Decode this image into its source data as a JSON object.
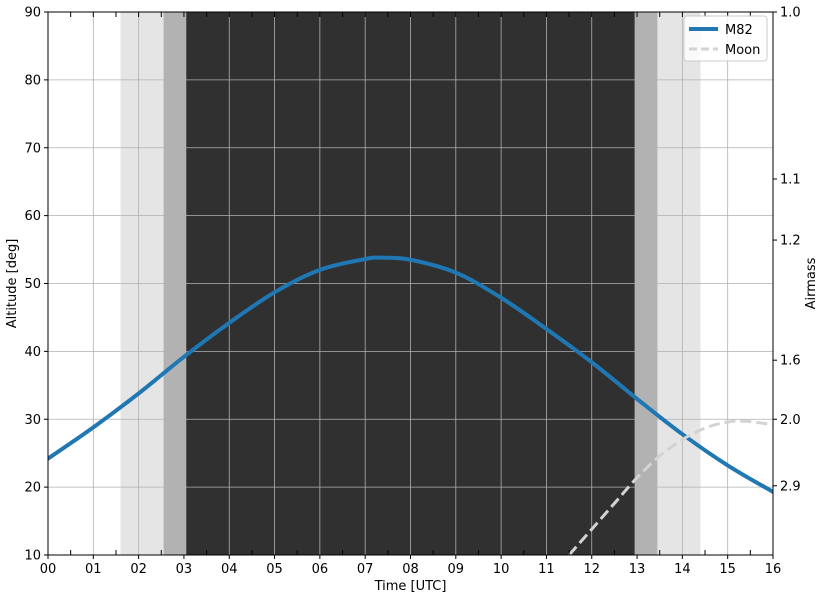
{
  "colors": {
    "m82": "#1f77b4",
    "moon": "#d3d3d3",
    "night": "#303030",
    "nautical": "#b2b2b2",
    "civil": "#e5e5e5",
    "grid": "#b0b0b0"
  },
  "chart_data": {
    "type": "line",
    "xlabel": "Time [UTC]",
    "ylabel": "Altitude [deg]",
    "ylabel_right": "Airmass",
    "xlim": [
      0,
      16
    ],
    "ylim": [
      10,
      90
    ],
    "grid": true,
    "legend_position": "top-right",
    "x_ticks": [
      {
        "value": 0,
        "label": "00"
      },
      {
        "value": 1,
        "label": "01"
      },
      {
        "value": 2,
        "label": "02"
      },
      {
        "value": 3,
        "label": "03"
      },
      {
        "value": 4,
        "label": "04"
      },
      {
        "value": 5,
        "label": "05"
      },
      {
        "value": 6,
        "label": "06"
      },
      {
        "value": 7,
        "label": "07"
      },
      {
        "value": 8,
        "label": "08"
      },
      {
        "value": 9,
        "label": "09"
      },
      {
        "value": 10,
        "label": "10"
      },
      {
        "value": 11,
        "label": "11"
      },
      {
        "value": 12,
        "label": "12"
      },
      {
        "value": 13,
        "label": "13"
      },
      {
        "value": 14,
        "label": "14"
      },
      {
        "value": 15,
        "label": "15"
      },
      {
        "value": 16,
        "label": "16"
      }
    ],
    "y_ticks": [
      {
        "value": 10,
        "label": "10"
      },
      {
        "value": 20,
        "label": "20"
      },
      {
        "value": 30,
        "label": "30"
      },
      {
        "value": 40,
        "label": "40"
      },
      {
        "value": 50,
        "label": "50"
      },
      {
        "value": 60,
        "label": "60"
      },
      {
        "value": 70,
        "label": "70"
      },
      {
        "value": 80,
        "label": "80"
      },
      {
        "value": 90,
        "label": "90"
      }
    ],
    "airmass_ticks": [
      {
        "altitude": 90.0,
        "label": "1.0"
      },
      {
        "altitude": 65.4,
        "label": "1.1"
      },
      {
        "altitude": 56.4,
        "label": "1.2"
      },
      {
        "altitude": 38.7,
        "label": "1.6"
      },
      {
        "altitude": 30.0,
        "label": "2.0"
      },
      {
        "altitude": 20.2,
        "label": "2.9"
      }
    ],
    "minor_x_ticks": [
      0.5,
      1.5,
      2.5,
      3.5,
      4.5,
      5.5,
      6.5,
      7.5,
      8.5,
      9.5,
      10.5,
      11.5,
      12.5,
      13.5,
      14.5,
      15.5
    ],
    "twilight_bands": [
      {
        "start": 1.6,
        "end": 2.55,
        "kind": "civil"
      },
      {
        "start": 2.55,
        "end": 3.05,
        "kind": "nautical"
      },
      {
        "start": 3.05,
        "end": 12.95,
        "kind": "night"
      },
      {
        "start": 12.95,
        "end": 13.45,
        "kind": "nautical"
      },
      {
        "start": 13.45,
        "end": 14.4,
        "kind": "civil"
      }
    ],
    "series": [
      {
        "name": "M82",
        "style": "solid",
        "x": [
          0,
          1,
          2,
          3,
          4,
          5,
          6,
          7,
          7.4,
          8,
          9,
          10,
          11,
          12,
          13,
          14,
          15,
          16
        ],
        "y": [
          24.2,
          28.8,
          33.8,
          39.2,
          44.2,
          48.7,
          52.0,
          53.6,
          53.8,
          53.5,
          51.6,
          47.9,
          43.3,
          38.4,
          33.0,
          27.8,
          23.2,
          19.3
        ]
      },
      {
        "name": "Moon",
        "style": "dashed",
        "x": [
          11.5,
          12,
          12.5,
          13,
          13.5,
          14,
          14.5,
          15,
          15.4,
          16
        ],
        "y": [
          10.0,
          13.8,
          17.6,
          21.4,
          24.6,
          27.0,
          28.7,
          29.6,
          29.7,
          29.2
        ]
      }
    ]
  }
}
